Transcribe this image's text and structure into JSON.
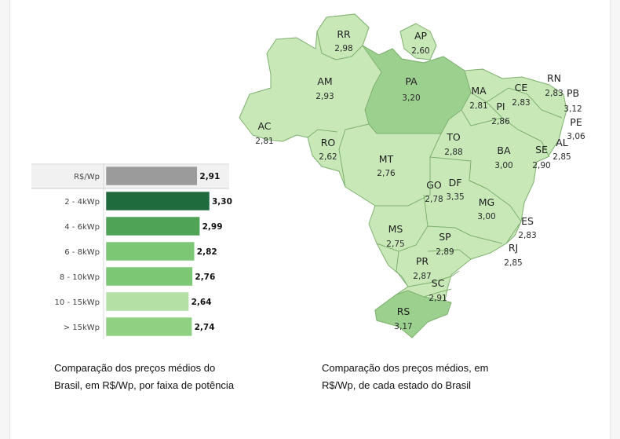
{
  "bar_chart": {
    "caption": [
      "Comparação dos preços médios do",
      "Brasil, em R$/Wp, por faixa de potência"
    ],
    "rows": [
      {
        "label": "R$/Wp",
        "value_label": "2,91",
        "color": "#9b9b9b"
      },
      {
        "label": "2 - 4kWp",
        "value_label": "3,30",
        "color": "#1f6b3e"
      },
      {
        "label": "4 - 6kWp",
        "value_label": "2,99",
        "color": "#4fa356"
      },
      {
        "label": "6 - 8kWp",
        "value_label": "2,82",
        "color": "#7cc774"
      },
      {
        "label": "8 - 10kWp",
        "value_label": "2,76",
        "color": "#7cc774"
      },
      {
        "label": "10 - 15kWp",
        "value_label": "2,64",
        "color": "#b4e0a6"
      },
      {
        "label": "> 15kWp",
        "value_label": "2,74",
        "color": "#8fd083"
      }
    ]
  },
  "map": {
    "caption": [
      "Comparação dos preços médios, em",
      "R$/Wp, de cada estado do Brasil"
    ],
    "colors": {
      "base": "#c8e8b8",
      "highlight": "#9cd08e",
      "border": "#7fb06f"
    },
    "states": [
      {
        "code": "RR",
        "value": "2,98"
      },
      {
        "code": "AP",
        "value": "2,60"
      },
      {
        "code": "AM",
        "value": "2,93"
      },
      {
        "code": "PA",
        "value": "3,20"
      },
      {
        "code": "MA",
        "value": "2,81"
      },
      {
        "code": "CE",
        "value": "2,83"
      },
      {
        "code": "RN",
        "value": "2,83"
      },
      {
        "code": "PB",
        "value": "3,12"
      },
      {
        "code": "PE",
        "value": "3,06"
      },
      {
        "code": "PI",
        "value": "2,86"
      },
      {
        "code": "AL",
        "value": "2,85"
      },
      {
        "code": "SE",
        "value": "2,90"
      },
      {
        "code": "AC",
        "value": "2,81"
      },
      {
        "code": "RO",
        "value": "2,62"
      },
      {
        "code": "MT",
        "value": "2,76"
      },
      {
        "code": "TO",
        "value": "2,88"
      },
      {
        "code": "BA",
        "value": "3,00"
      },
      {
        "code": "GO",
        "value": "2,78"
      },
      {
        "code": "DF",
        "value": "3,35"
      },
      {
        "code": "MG",
        "value": "3,00"
      },
      {
        "code": "ES",
        "value": "2,83"
      },
      {
        "code": "MS",
        "value": "2,75"
      },
      {
        "code": "SP",
        "value": "2,89"
      },
      {
        "code": "RJ",
        "value": "2,85"
      },
      {
        "code": "PR",
        "value": "2,87"
      },
      {
        "code": "SC",
        "value": "2,91"
      },
      {
        "code": "RS",
        "value": "3,17"
      }
    ]
  },
  "chart_data": [
    {
      "type": "bar",
      "orientation": "horizontal",
      "categories": [
        "R$/Wp",
        "2 - 4kWp",
        "4 - 6kWp",
        "6 - 8kWp",
        "8 - 10kWp",
        "10 - 15kWp",
        "> 15kWp"
      ],
      "values": [
        2.91,
        3.3,
        2.99,
        2.82,
        2.76,
        2.64,
        2.74
      ],
      "title": "",
      "xlabel": "",
      "ylabel": "",
      "xlim": [
        0,
        3.3
      ]
    },
    {
      "type": "choropleth-map",
      "region": "Brasil",
      "categories": [
        "RR",
        "AP",
        "AM",
        "PA",
        "MA",
        "CE",
        "RN",
        "PB",
        "PE",
        "PI",
        "AL",
        "SE",
        "AC",
        "RO",
        "MT",
        "TO",
        "BA",
        "GO",
        "DF",
        "MG",
        "ES",
        "MS",
        "SP",
        "RJ",
        "PR",
        "SC",
        "RS"
      ],
      "values": [
        2.98,
        2.6,
        2.93,
        3.2,
        2.81,
        2.83,
        2.83,
        3.12,
        3.06,
        2.86,
        2.85,
        2.9,
        2.81,
        2.62,
        2.76,
        2.88,
        3.0,
        2.78,
        3.35,
        3.0,
        2.83,
        2.75,
        2.89,
        2.85,
        2.87,
        2.91,
        3.17
      ]
    }
  ]
}
